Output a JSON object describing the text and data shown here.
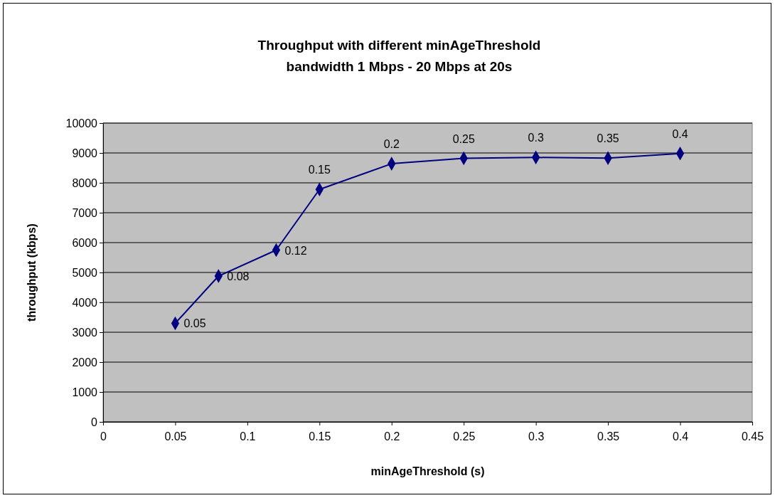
{
  "chart_data": {
    "type": "line",
    "title": "Throughput with different minAgeThreshold\nbandwidth 1 Mbps - 20 Mbps at 20s",
    "xlabel": "minAgeThreshold (s)",
    "ylabel": "throughput (kbps)",
    "x": [
      0.05,
      0.08,
      0.12,
      0.15,
      0.2,
      0.25,
      0.3,
      0.35,
      0.4
    ],
    "series": [
      {
        "color": "#000080",
        "values": [
          3300,
          4880,
          5750,
          7780,
          8640,
          8820,
          8850,
          8830,
          8980
        ]
      }
    ],
    "xlim": [
      0,
      0.45
    ],
    "xticks": [
      0,
      0.05,
      0.1,
      0.15,
      0.2,
      0.25,
      0.3,
      0.35,
      0.4,
      0.45
    ],
    "ylim": [
      0,
      10000
    ],
    "yticks": [
      0,
      1000,
      2000,
      3000,
      4000,
      5000,
      6000,
      7000,
      8000,
      9000,
      10000
    ],
    "grid": "y",
    "marker": "diamond",
    "line_style": "solid",
    "annotations": [
      {
        "text": "0.05",
        "x": 0.05,
        "y": 3300
      },
      {
        "text": "0.08",
        "x": 0.08,
        "y": 4880
      },
      {
        "text": "0.12",
        "x": 0.12,
        "y": 5750
      },
      {
        "text": "0.15",
        "x": 0.15,
        "y": 7780
      },
      {
        "text": "0.2",
        "x": 0.2,
        "y": 8640
      },
      {
        "text": "0.25",
        "x": 0.25,
        "y": 8820
      },
      {
        "text": "0.3",
        "x": 0.3,
        "y": 8850
      },
      {
        "text": "0.35",
        "x": 0.35,
        "y": 8830
      },
      {
        "text": "0.4",
        "x": 0.4,
        "y": 8980
      }
    ]
  }
}
